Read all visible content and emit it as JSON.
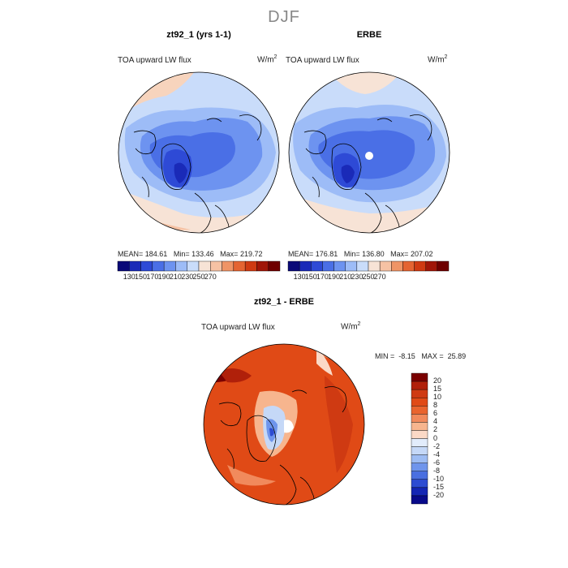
{
  "page_title": "DJF",
  "colors": {
    "scale_top": [
      "#0a0a78",
      "#1a2ab8",
      "#2e4ad6",
      "#4a6fe6",
      "#6d93f0",
      "#9dbcf7",
      "#c9dcfa",
      "#f7e3d6",
      "#f6c2a4",
      "#ef9466",
      "#e46432",
      "#cf3a12",
      "#a01608",
      "#6e0000"
    ],
    "scale_diff_positive": [
      "#fbd9c6",
      "#f7b58e",
      "#f18a5c",
      "#e9642e",
      "#e04a16",
      "#cf3a12",
      "#b0200a",
      "#7a0000"
    ],
    "scale_diff_negative": [
      "#e2ecfb",
      "#c5d8f7",
      "#9dbcf3",
      "#6f95ec",
      "#4a6fe0",
      "#2d4cd2",
      "#1426b4",
      "#080a8a"
    ],
    "land_outline": "#000000"
  },
  "chart_data": [
    {
      "type": "heatmap",
      "panel": "model",
      "title": "zt92_1 (yrs 1-1)",
      "variable": "TOA upward LW flux",
      "units_base": "W/m",
      "units_exp": "2",
      "stats": {
        "mean_label": "MEAN=",
        "mean": "184.61",
        "min_label": "Min=",
        "min": "133.46",
        "max_label": "Max=",
        "max": "219.72"
      },
      "colorbar_ticks": [
        "130",
        "150",
        "170",
        "190",
        "210",
        "230",
        "250",
        "270"
      ]
    },
    {
      "type": "heatmap",
      "panel": "observations",
      "title": "ERBE",
      "variable": "TOA upward LW flux",
      "units_base": "W/m",
      "units_exp": "2",
      "stats": {
        "mean_label": "MEAN=",
        "mean": "176.81",
        "min_label": "Min=",
        "min": "136.80",
        "max_label": "Max=",
        "max": "207.02"
      },
      "colorbar_ticks": [
        "130",
        "150",
        "170",
        "190",
        "210",
        "230",
        "250",
        "270"
      ]
    },
    {
      "type": "heatmap",
      "panel": "difference",
      "title": "zt92_1 - ERBE",
      "variable": "TOA upward LW flux",
      "units_base": "W/m",
      "units_exp": "2",
      "stats": {
        "min_label": "MIN =",
        "min": "-8.15",
        "max_label": "MAX =",
        "max": "25.89"
      },
      "colorbar_ticks": [
        "20",
        "15",
        "10",
        "8",
        "6",
        "4",
        "2",
        "0",
        "-2",
        "-4",
        "-6",
        "-8",
        "-10",
        "-15",
        "-20"
      ]
    }
  ]
}
